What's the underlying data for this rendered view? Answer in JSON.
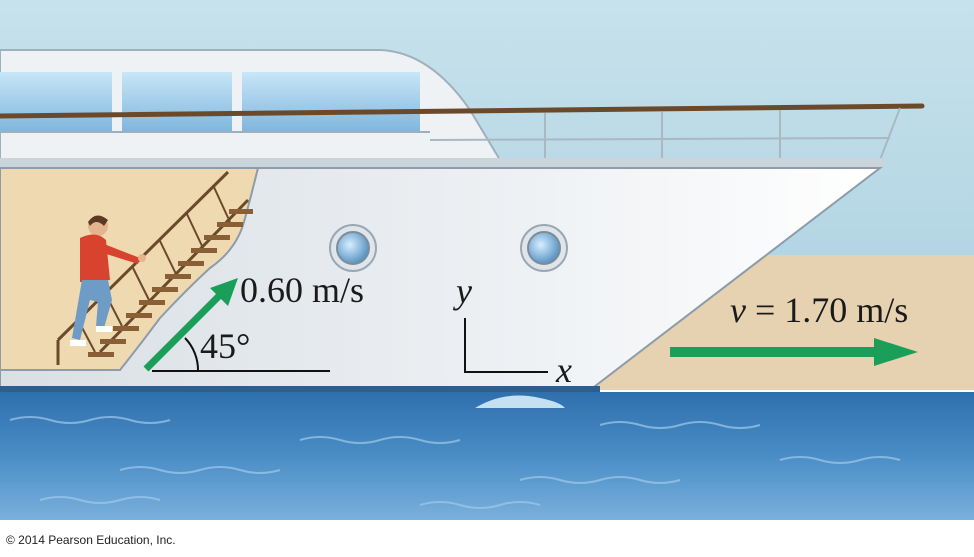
{
  "labels": {
    "person_velocity": "0.60 m/s",
    "angle": "45°",
    "axis_y": "y",
    "axis_x": "x",
    "ship_velocity_symbol": "v",
    "ship_velocity_value": " = 1.70 m/s"
  },
  "copyright": "© 2014 Pearson Education, Inc.",
  "colors": {
    "arrow": "#1a9e5a",
    "sky": "#b9d9e6",
    "hull": "#e6ebef",
    "water": "#3f82bd",
    "wall": "#efd9b0"
  }
}
